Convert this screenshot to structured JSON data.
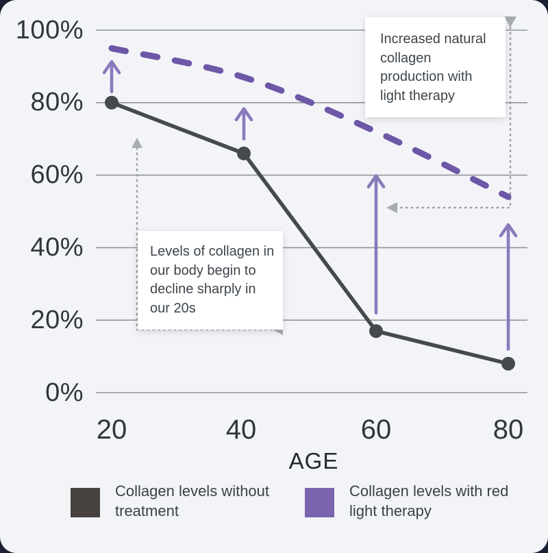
{
  "chart_data": {
    "type": "line",
    "title": "",
    "xlabel": "AGE",
    "ylabel": "",
    "x": [
      20,
      40,
      60,
      80
    ],
    "x_tick_labels": [
      "20",
      "40",
      "60",
      "80"
    ],
    "y_ticks": [
      0,
      20,
      40,
      60,
      80,
      100
    ],
    "y_tick_labels": [
      "0%",
      "20%",
      "40%",
      "60%",
      "80%",
      "100%"
    ],
    "ylim": [
      0,
      100
    ],
    "grid": "horizontal",
    "legend_position": "bottom",
    "series": [
      {
        "name": "Collagen levels without treatment",
        "style": "solid-with-dots",
        "color": "#474a4d",
        "values": [
          80,
          66,
          17,
          8
        ]
      },
      {
        "name": "Collagen levels with red light therapy",
        "style": "dashed-curve",
        "color": "#6d57a6",
        "values": [
          95,
          87,
          72,
          54
        ]
      }
    ],
    "increase_arrows": [
      {
        "x": 20,
        "from": 83,
        "to": 91.5
      },
      {
        "x": 40,
        "from": 70,
        "to": 78.5
      },
      {
        "x": 60,
        "from": 22,
        "to": 60
      },
      {
        "x": 80,
        "from": 12,
        "to": 46.5
      }
    ],
    "arrow_color": "#8a7abc"
  },
  "axis": {
    "x_label": "AGE",
    "x_ticks": [
      "20",
      "40",
      "60",
      "80"
    ],
    "y_ticks_top_down": [
      "100%",
      "80%",
      "60%",
      "40%",
      "20%",
      "0%"
    ]
  },
  "annotations": {
    "light_therapy": {
      "text": "Increased natural collagen production with light therapy"
    },
    "decline": {
      "text": "Levels of collagen in our body begin to decline sharply in our 20s"
    }
  },
  "legend": [
    {
      "label": "Collagen levels without treatment",
      "color": "#474240"
    },
    {
      "label": "Collagen levels with red light therapy",
      "color": "#7a64af"
    }
  ],
  "colors": {
    "card_background": "#f3f4f8",
    "outer_background": "#1b2033",
    "gridline": "#909399",
    "connector_gray": "#9da1a5",
    "connector_arrowhead": "#a8acb0",
    "tick_text": "#2f363c",
    "annotation_text": "#3e454b"
  }
}
